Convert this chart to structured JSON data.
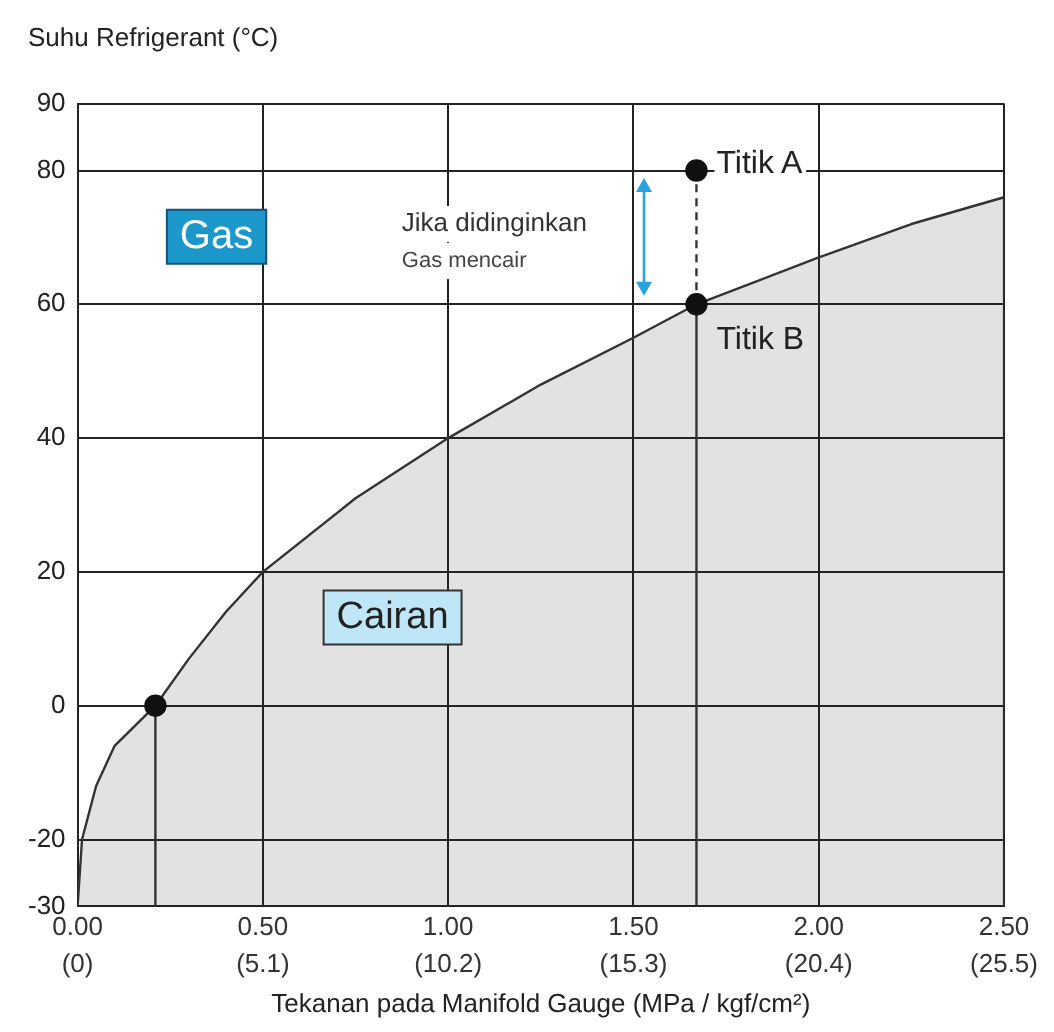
{
  "chart_data": {
    "type": "line",
    "xlabel": "Tekanan pada Manifold Gauge (MPa / kgf/cm²)",
    "ylabel": "Suhu Refrigerant (°C)",
    "xlim": [
      0,
      2.5
    ],
    "ylim": [
      -30,
      90
    ],
    "xticks": [
      {
        "value": 0,
        "label": "0.00"
      },
      {
        "value": 0.5,
        "label": "0.50"
      },
      {
        "value": 1,
        "label": "1.00"
      },
      {
        "value": 1.5,
        "label": "1.50"
      },
      {
        "value": 2,
        "label": "2.00"
      },
      {
        "value": 2.5,
        "label": "2.50"
      }
    ],
    "x2lim": [
      0,
      25.5
    ],
    "x2ticks": [
      {
        "value": 0,
        "label": "(0)"
      },
      {
        "value": 5.1,
        "label": "(5.1)"
      },
      {
        "value": 10.2,
        "label": "(10.2)"
      },
      {
        "value": 15.3,
        "label": "(15.3)"
      },
      {
        "value": 20.4,
        "label": "(20.4)"
      },
      {
        "value": 25.5,
        "label": "(25.5)"
      }
    ],
    "yticks": [
      -30,
      -20,
      0,
      20,
      40,
      60,
      80,
      90
    ],
    "grid": true,
    "legend": false,
    "series": [
      {
        "type": "area",
        "color": "#333333",
        "x": [
          0,
          0.012,
          0.05,
          0.1,
          0.21,
          0.3,
          0.4,
          0.5,
          0.75,
          1,
          1.25,
          1.5,
          1.67,
          2,
          2.25,
          2.5,
          2.5
        ],
        "values": [
          -30,
          -20,
          -12,
          -6,
          0,
          7,
          14,
          20,
          31,
          40,
          48,
          55,
          60,
          67,
          72,
          76,
          -30
        ]
      },
      {
        "type": "line",
        "color": "#333333",
        "line_style": "solid",
        "marker": "none",
        "x": [
          0.21,
          0.21
        ],
        "values": [
          -30,
          0
        ]
      },
      {
        "type": "line",
        "color": "#333333",
        "line_style": "solid",
        "marker": "none",
        "x": [
          1.67,
          1.67
        ],
        "values": [
          -30,
          60
        ]
      },
      {
        "type": "line",
        "color": "#333333",
        "line_style": "dashed",
        "marker": "none",
        "x": [
          1.67,
          1.67
        ],
        "values": [
          60,
          80
        ]
      },
      {
        "type": "scatter",
        "color": "#111111",
        "marker": "circle",
        "x": [
          0.21,
          1.67,
          1.67
        ],
        "values": [
          0,
          80,
          60
        ]
      }
    ],
    "annotations": [
      "Gas",
      "Cairan",
      "Jika didinginkan",
      "Gas mencair",
      {
        "text": "Titik A",
        "x": 1.67,
        "y": 80
      },
      {
        "text": "Titik B",
        "x": 1.67,
        "y": 60
      }
    ]
  }
}
